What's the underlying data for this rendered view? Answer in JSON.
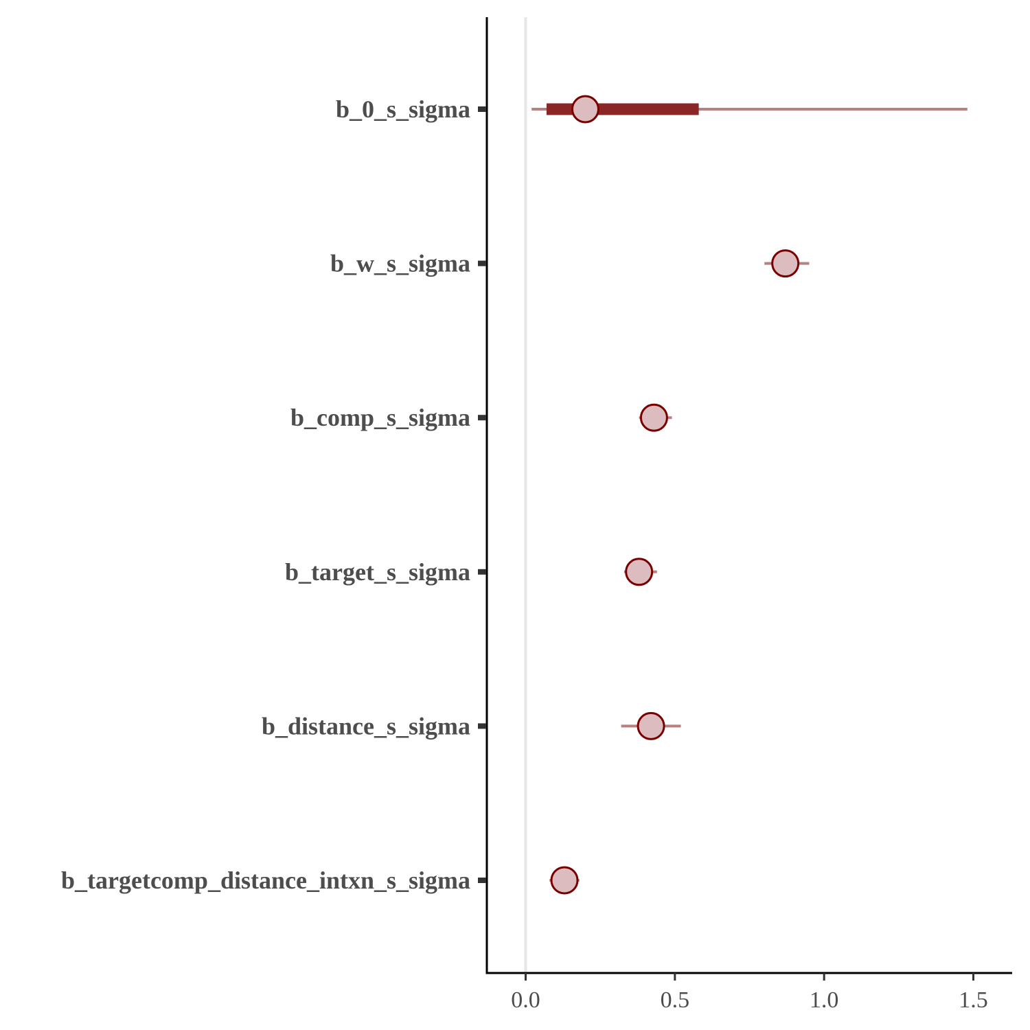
{
  "chart_data": {
    "type": "interval",
    "xlim": [
      -0.13,
      1.63
    ],
    "x_ticks": [
      {
        "value": 0.0,
        "label": "0.0"
      },
      {
        "value": 0.5,
        "label": "0.5"
      },
      {
        "value": 1.0,
        "label": "1.0"
      },
      {
        "value": 1.5,
        "label": "1.5"
      }
    ],
    "reference_line": 0,
    "grid": false,
    "colors": {
      "outer_interval": "#b98080",
      "inner_interval": "#8b2626",
      "point_fill": "#dcbcbf",
      "point_stroke": "#7a0000",
      "reference_line": "#e6e6e6",
      "axis": "#000000",
      "tick": "#333333",
      "label": "#4d4d4d"
    },
    "parameters": [
      {
        "name": "b_0_s_sigma",
        "median": 0.2,
        "inner": [
          0.07,
          0.58
        ],
        "outer": [
          0.02,
          1.48
        ]
      },
      {
        "name": "b_w_s_sigma",
        "median": 0.87,
        "inner": [
          0.85,
          0.89
        ],
        "outer": [
          0.8,
          0.95
        ]
      },
      {
        "name": "b_comp_s_sigma",
        "median": 0.43,
        "inner": [
          0.41,
          0.45
        ],
        "outer": [
          0.38,
          0.49
        ]
      },
      {
        "name": "b_target_s_sigma",
        "median": 0.38,
        "inner": [
          0.36,
          0.4
        ],
        "outer": [
          0.33,
          0.44
        ]
      },
      {
        "name": "b_distance_s_sigma",
        "median": 0.42,
        "inner": [
          0.39,
          0.45
        ],
        "outer": [
          0.32,
          0.52
        ]
      },
      {
        "name": "b_targetcomp_distance_intxn_s_sigma",
        "median": 0.13,
        "inner": [
          0.11,
          0.15
        ],
        "outer": [
          0.08,
          0.18
        ]
      }
    ]
  }
}
